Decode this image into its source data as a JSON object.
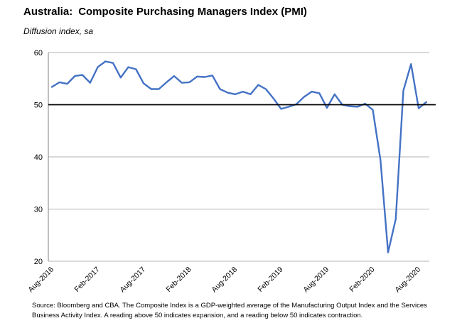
{
  "chart_data": {
    "type": "line",
    "title_part1": "Australia:",
    "title_part2": "Composite Purchasing Managers Index (PMI)",
    "subtitle": "Diffusion index, sa",
    "ylim": [
      20,
      60
    ],
    "yticks": [
      20,
      30,
      40,
      50,
      60
    ],
    "reference_line": 50,
    "grid": true,
    "xtick_labels": [
      "Aug-2016",
      "Feb-2017",
      "Aug-2017",
      "Feb-2018",
      "Aug-2018",
      "Feb-2019",
      "Aug-2019",
      "Feb-2020",
      "Aug-2020"
    ],
    "xtick_indices": [
      0,
      6,
      12,
      18,
      24,
      30,
      36,
      42,
      48
    ],
    "series": [
      {
        "color": "#4472C4",
        "values": [
          53.4,
          54.3,
          54.0,
          55.5,
          55.7,
          54.2,
          57.2,
          58.3,
          58.0,
          55.2,
          57.2,
          56.8,
          54.1,
          53.0,
          53.0,
          54.3,
          55.5,
          54.2,
          54.3,
          55.4,
          55.3,
          55.6,
          53.0,
          52.3,
          52.0,
          52.5,
          52.0,
          53.8,
          53.0,
          51.2,
          49.2,
          49.6,
          50.1,
          51.5,
          52.5,
          52.2,
          49.4,
          52.0,
          50.0,
          49.7,
          49.6,
          50.2,
          49.0,
          39.4,
          21.7,
          28.1,
          52.7,
          57.8,
          49.3,
          50.5
        ]
      }
    ]
  },
  "source_note": "Source: Bloomberg and CBA. The Composite Index is a GDP-weighted average of the Manufacturing Output Index and the Services Business Activity Index.  A reading above 50 indicates expansion, and a reading below 50 indicates contraction."
}
